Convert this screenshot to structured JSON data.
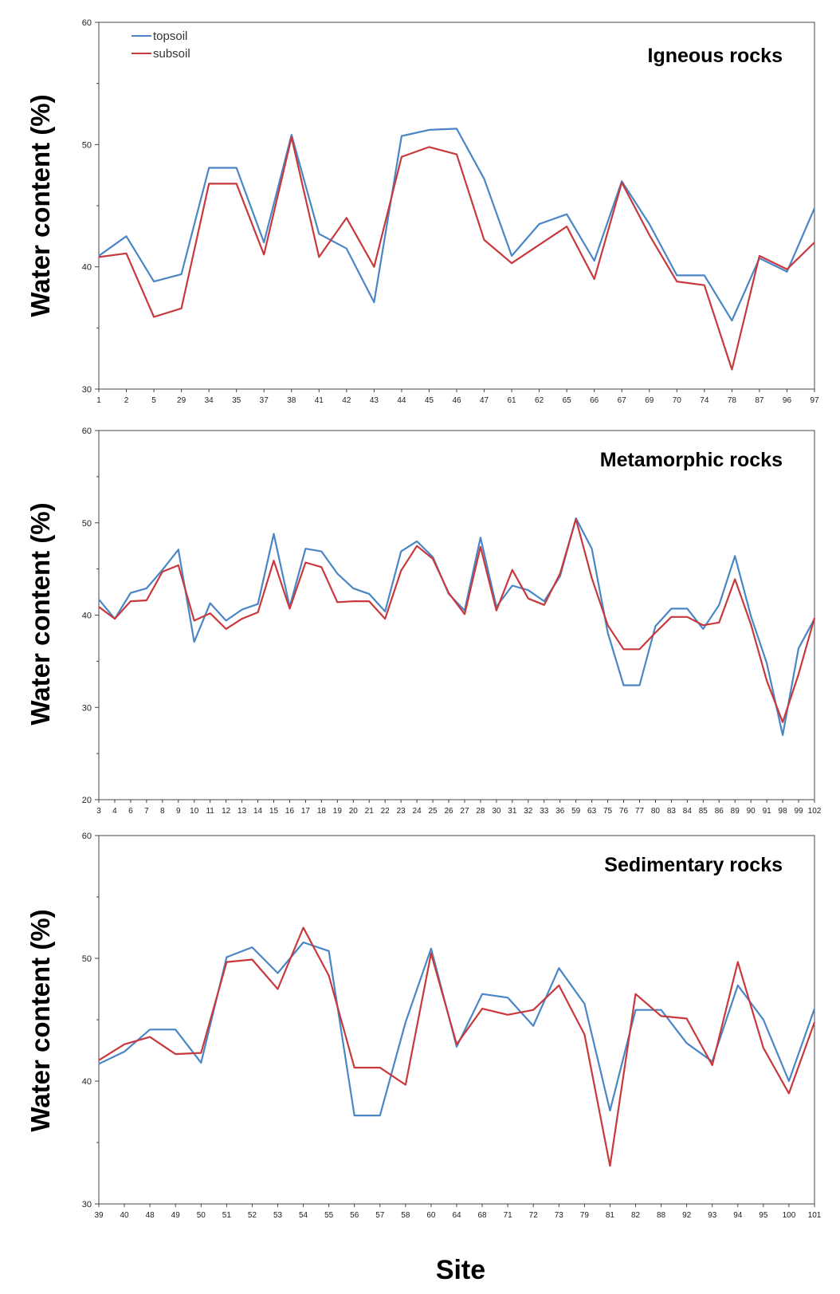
{
  "figure": {
    "xlabel": "Site",
    "colors": {
      "topsoil": "#4a86c6",
      "subsoil": "#c8393e"
    }
  },
  "chart_data": [
    {
      "type": "line",
      "title": "Igneous rocks",
      "ylabel": "Water content (%)",
      "xlabel": "",
      "ylim": [
        30,
        60
      ],
      "yticks": [
        30,
        40,
        50,
        60
      ],
      "grid": false,
      "legend": {
        "position": "top-left",
        "entries": [
          "topsoil",
          "subsoil"
        ]
      },
      "categories": [
        "1",
        "2",
        "5",
        "29",
        "34",
        "35",
        "37",
        "38",
        "41",
        "42",
        "43",
        "44",
        "45",
        "46",
        "47",
        "61",
        "62",
        "65",
        "66",
        "67",
        "69",
        "70",
        "74",
        "78",
        "87",
        "96",
        "97"
      ],
      "series": [
        {
          "name": "topsoil",
          "color": "#4a86c6",
          "values": [
            40.9,
            42.5,
            38.8,
            39.4,
            48.1,
            48.1,
            42.0,
            50.8,
            42.7,
            41.5,
            37.1,
            50.7,
            51.2,
            51.3,
            47.2,
            40.9,
            43.5,
            44.3,
            40.5,
            47.0,
            43.5,
            39.3,
            39.3,
            35.6,
            40.7,
            39.6,
            44.8
          ]
        },
        {
          "name": "subsoil",
          "color": "#c8393e",
          "values": [
            40.8,
            41.1,
            35.9,
            36.6,
            46.8,
            46.8,
            41.0,
            50.6,
            40.8,
            44.0,
            40.0,
            49.0,
            49.8,
            49.2,
            42.2,
            40.3,
            41.8,
            43.3,
            39.0,
            46.9,
            42.6,
            38.8,
            38.5,
            31.6,
            40.9,
            39.8,
            42.0
          ]
        }
      ]
    },
    {
      "type": "line",
      "title": "Metamorphic rocks",
      "ylabel": "Water content (%)",
      "xlabel": "",
      "ylim": [
        20,
        60
      ],
      "yticks": [
        20,
        30,
        40,
        50,
        60
      ],
      "grid": false,
      "categories": [
        "3",
        "4",
        "6",
        "7",
        "8",
        "9",
        "10",
        "11",
        "12",
        "13",
        "14",
        "15",
        "16",
        "17",
        "18",
        "19",
        "20",
        "21",
        "22",
        "23",
        "24",
        "25",
        "26",
        "27",
        "28",
        "30",
        "31",
        "32",
        "33",
        "36",
        "59",
        "63",
        "75",
        "76",
        "77",
        "80",
        "83",
        "84",
        "85",
        "86",
        "89",
        "90",
        "91",
        "98",
        "99",
        "102"
      ],
      "series": [
        {
          "name": "topsoil",
          "color": "#4a86c6",
          "values": [
            41.7,
            39.6,
            42.4,
            42.9,
            44.9,
            47.1,
            37.1,
            41.3,
            39.4,
            40.6,
            41.2,
            48.8,
            40.9,
            47.2,
            46.9,
            44.5,
            42.9,
            42.3,
            40.4,
            46.9,
            48.0,
            46.3,
            42.3,
            40.5,
            48.4,
            40.9,
            43.2,
            42.7,
            41.5,
            44.2,
            50.5,
            47.2,
            38.1,
            32.4,
            32.4,
            38.8,
            40.7,
            40.7,
            38.5,
            41.1,
            46.4,
            39.9,
            34.8,
            27.0,
            36.4,
            39.6
          ]
        },
        {
          "name": "subsoil",
          "color": "#c8393e",
          "values": [
            40.9,
            39.6,
            41.5,
            41.6,
            44.7,
            45.4,
            39.4,
            40.2,
            38.5,
            39.6,
            40.3,
            45.9,
            40.7,
            45.7,
            45.2,
            41.4,
            41.5,
            41.5,
            39.6,
            44.8,
            47.5,
            46.1,
            42.4,
            40.1,
            47.4,
            40.5,
            44.9,
            41.8,
            41.1,
            44.5,
            50.4,
            44.0,
            38.9,
            36.3,
            36.3,
            38.1,
            39.8,
            39.8,
            38.9,
            39.2,
            43.9,
            39.0,
            32.9,
            28.4,
            33.6,
            39.7
          ]
        }
      ]
    },
    {
      "type": "line",
      "title": "Sedimentary rocks",
      "ylabel": "Water content (%)",
      "xlabel": "Site",
      "ylim": [
        30,
        60
      ],
      "yticks": [
        30,
        40,
        50,
        60
      ],
      "grid": false,
      "categories": [
        "39",
        "40",
        "48",
        "49",
        "50",
        "51",
        "52",
        "53",
        "54",
        "55",
        "56",
        "57",
        "58",
        "60",
        "64",
        "68",
        "71",
        "72",
        "73",
        "79",
        "81",
        "82",
        "88",
        "92",
        "93",
        "94",
        "95",
        "100",
        "101"
      ],
      "series": [
        {
          "name": "topsoil",
          "color": "#4a86c6",
          "values": [
            41.4,
            42.4,
            44.2,
            44.2,
            41.5,
            50.1,
            50.9,
            48.8,
            51.3,
            50.6,
            37.2,
            37.2,
            44.8,
            50.8,
            42.8,
            47.1,
            46.8,
            44.5,
            49.2,
            46.3,
            37.6,
            45.8,
            45.8,
            43.1,
            41.6,
            47.8,
            45.0,
            40.0,
            45.9
          ]
        },
        {
          "name": "subsoil",
          "color": "#c8393e",
          "values": [
            41.7,
            43.0,
            43.6,
            42.2,
            42.3,
            49.7,
            49.9,
            47.5,
            52.5,
            48.6,
            41.1,
            41.1,
            39.7,
            50.4,
            43.0,
            45.9,
            45.4,
            45.8,
            47.8,
            43.8,
            33.1,
            47.1,
            45.3,
            45.1,
            41.3,
            49.7,
            42.7,
            39.0,
            44.8
          ]
        }
      ]
    }
  ]
}
